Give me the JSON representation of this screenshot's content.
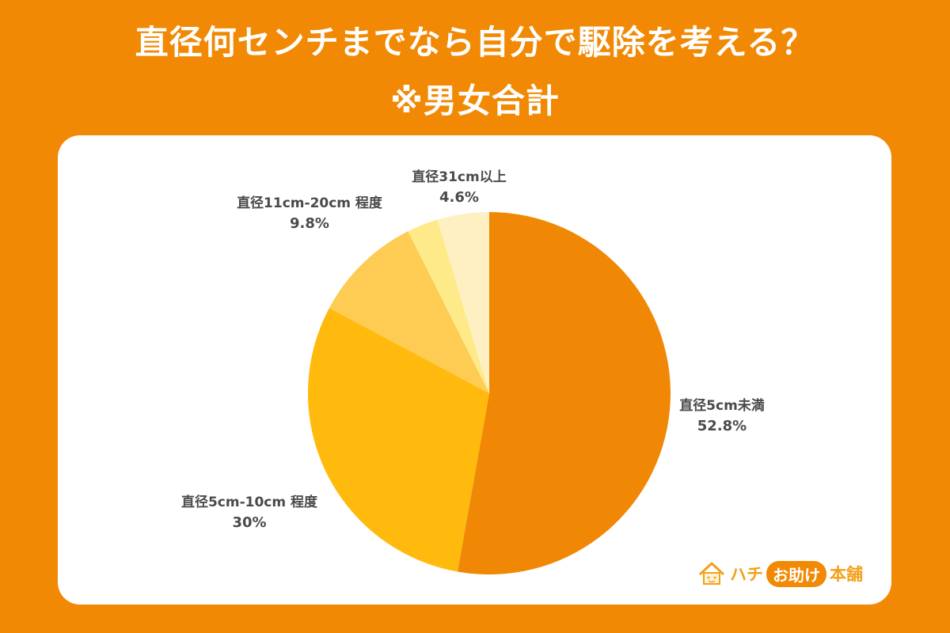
{
  "header": {
    "title_line1": "直径何センチまでなら自分で駆除を考える？",
    "title_line2": "※男女合計"
  },
  "colors": {
    "background": "#F18904",
    "card": "#FFFFFF",
    "label_text": "#4A4A4A"
  },
  "logo": {
    "part1": "ハチ",
    "part2": "お助け",
    "part3": "本舗"
  },
  "chart_data": {
    "type": "pie",
    "title": "直径何センチまでなら自分で駆除を考える？ ※男女合計",
    "start_angle": "12 o'clock, clockwise",
    "slices": [
      {
        "label": "直径5cm未満",
        "value": 52.8,
        "display": "52.8%",
        "color": "#F08805"
      },
      {
        "label": "直径5cm-10cm 程度",
        "value": 30,
        "display": "30%",
        "color": "#FFBA0D"
      },
      {
        "label": "直径11cm-20cm 程度",
        "value": 9.8,
        "display": "9.8%",
        "color": "#FECB53"
      },
      {
        "label": "",
        "value": 2.8,
        "display": "",
        "color": "#FFEA8A"
      },
      {
        "label": "直径31cm以上",
        "value": 4.6,
        "display": "4.6%",
        "color": "#FFF0C4"
      }
    ]
  },
  "labels": {
    "s0": {
      "name": "直径5cm未満",
      "pct": "52.8%"
    },
    "s1": {
      "name": "直径5cm-10cm 程度",
      "pct": "30%"
    },
    "s2": {
      "name": "直径11cm-20cm 程度",
      "pct": "9.8%"
    },
    "s4": {
      "name": "直径31cm以上",
      "pct": "4.6%"
    }
  }
}
